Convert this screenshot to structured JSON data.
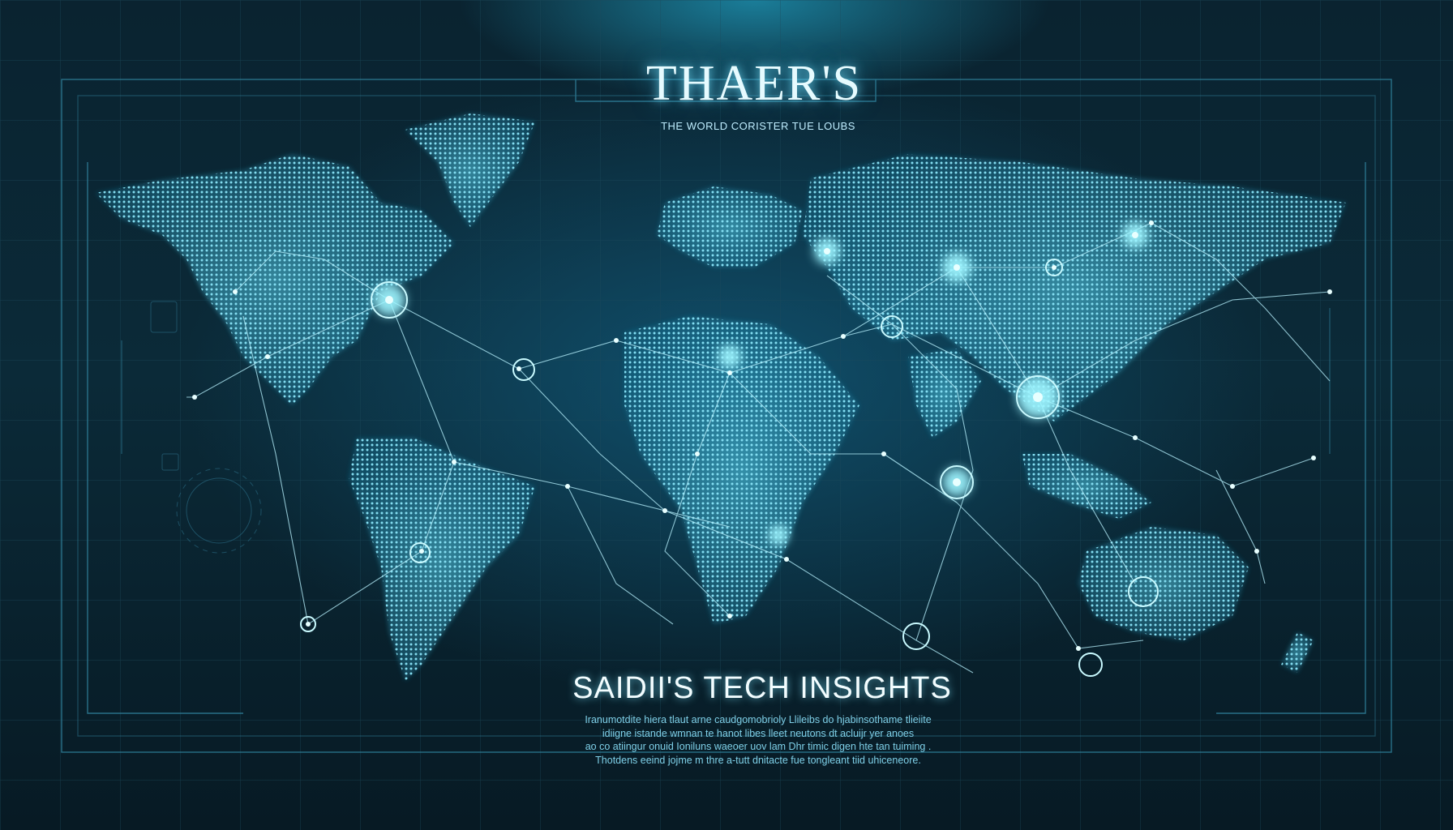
{
  "header": {
    "title": "THAER'S",
    "subtitle": "THE WORLD CORISTER TUE LOUBS"
  },
  "footer": {
    "heading": "SAIDII'S TECH INSIGHTS",
    "lines": [
      "Iranumotdite hiera tlaut arne caudgomobrioly Llileibs do hjabinsothame tlieiite",
      "idiigne istande wmnan te hanot libes lleet neutons dt acluijr yer anoes",
      "ao co atiingur onuid Ioniluns waeoer uov lam Dhr timic digen hte tan tuiming .",
      "Thotdens eeind jojme m thre a-tutt dnitacte fue tongleant tiid uhiceneore."
    ]
  },
  "colors": {
    "background": "#071a24",
    "grid": "#1c4a5c",
    "land": "#3fc6e6",
    "glow": "#7ff0ff",
    "line": "#b9f3ff",
    "text": "#e6fbff"
  },
  "icons": [
    "node-circle-icon",
    "map-marker-icon"
  ]
}
